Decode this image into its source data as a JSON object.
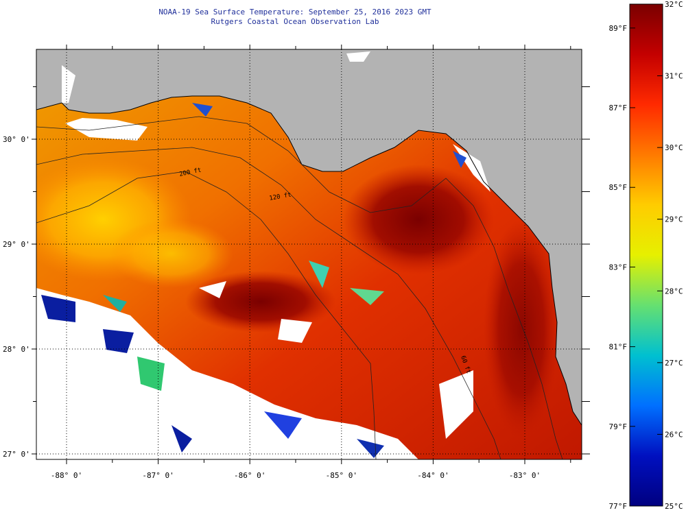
{
  "title": {
    "line1": "NOAA-19 Sea Surface Temperature:  September 25, 2016 2023 GMT",
    "line2": "Rutgers Coastal Ocean Observation Lab"
  },
  "map": {
    "lat_labels": [
      {
        "value": 30,
        "text": "30° 0'"
      },
      {
        "value": 29,
        "text": "29° 0'"
      },
      {
        "value": 28,
        "text": "28° 0'"
      },
      {
        "value": 27,
        "text": "27° 0'"
      }
    ],
    "lon_labels": [
      {
        "value": -88,
        "text": "-88° 0'"
      },
      {
        "value": -87,
        "text": "-87° 0'"
      },
      {
        "value": -86,
        "text": "-86° 0'"
      },
      {
        "value": -85,
        "text": "-85° 0'"
      },
      {
        "value": -84,
        "text": "-84° 0'"
      },
      {
        "value": -83,
        "text": "-83° 0'"
      }
    ],
    "isobath_labels": [
      "200 ft",
      "120 ft",
      "60 ft"
    ],
    "colors": {
      "land": "#b3b3b3",
      "cloud": "#ffffff",
      "coast": "#000000"
    }
  },
  "colorbar": {
    "celsius": [
      {
        "value": 32,
        "text": "32°C"
      },
      {
        "value": 31,
        "text": "31°C"
      },
      {
        "value": 30,
        "text": "30°C"
      },
      {
        "value": 29,
        "text": "29°C"
      },
      {
        "value": 28,
        "text": "28°C"
      },
      {
        "value": 27,
        "text": "27°C"
      },
      {
        "value": 26,
        "text": "26°C"
      },
      {
        "value": 25,
        "text": "25°C"
      }
    ],
    "fahrenheit": [
      {
        "value": 89,
        "text": "89°F"
      },
      {
        "value": 87,
        "text": "87°F"
      },
      {
        "value": 85,
        "text": "85°F"
      },
      {
        "value": 83,
        "text": "83°F"
      },
      {
        "value": 81,
        "text": "81°F"
      },
      {
        "value": 79,
        "text": "79°F"
      },
      {
        "value": 77,
        "text": "77°F"
      }
    ],
    "gradient_stops": [
      "#7a0000",
      "#c40000",
      "#ff2a00",
      "#ff7a00",
      "#ffcc00",
      "#e6f000",
      "#66e070",
      "#00c0d0",
      "#0070ff",
      "#0010c0",
      "#000080"
    ]
  }
}
